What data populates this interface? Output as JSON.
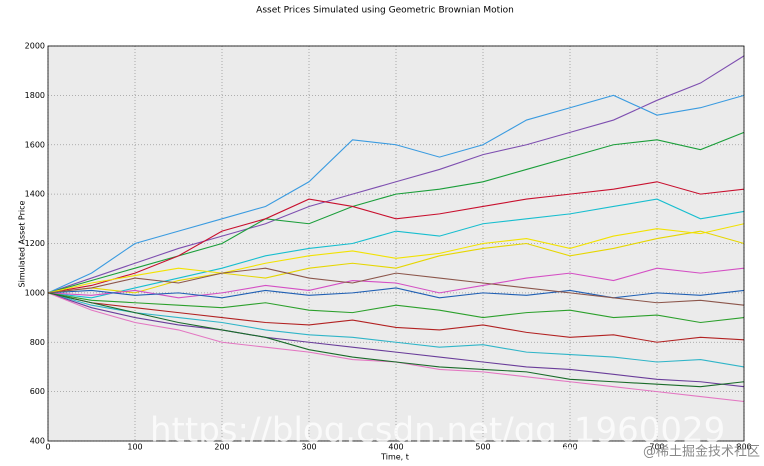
{
  "chart_data": {
    "type": "line",
    "title": "Asset Prices Simulated using Geometric Brownian Motion",
    "xlabel": "Time, t",
    "ylabel": "Simulated Asset Price",
    "x": [
      0,
      50,
      100,
      150,
      200,
      250,
      300,
      350,
      400,
      450,
      500,
      550,
      600,
      650,
      700,
      750,
      800
    ],
    "series": [
      {
        "color": "#7e4fb0",
        "values": [
          1000,
          1060,
          1120,
          1180,
          1230,
          1280,
          1350,
          1400,
          1450,
          1500,
          1560,
          1600,
          1650,
          1700,
          1780,
          1850,
          1960
        ]
      },
      {
        "color": "#3a9be0",
        "values": [
          1000,
          1080,
          1200,
          1250,
          1300,
          1350,
          1450,
          1620,
          1600,
          1550,
          1600,
          1700,
          1750,
          1800,
          1720,
          1750,
          1800
        ]
      },
      {
        "color": "#1b9e3a",
        "values": [
          1000,
          1050,
          1100,
          1150,
          1200,
          1300,
          1280,
          1350,
          1400,
          1420,
          1450,
          1500,
          1550,
          1600,
          1620,
          1580,
          1650
        ]
      },
      {
        "color": "#c8102e",
        "values": [
          1000,
          1030,
          1080,
          1150,
          1250,
          1300,
          1380,
          1350,
          1300,
          1320,
          1350,
          1380,
          1400,
          1420,
          1450,
          1400,
          1420
        ]
      },
      {
        "color": "#17becf",
        "values": [
          1000,
          980,
          1020,
          1060,
          1100,
          1150,
          1180,
          1200,
          1250,
          1230,
          1280,
          1300,
          1320,
          1350,
          1380,
          1300,
          1330
        ]
      },
      {
        "color": "#e6d600",
        "values": [
          1000,
          1020,
          1000,
          1050,
          1080,
          1060,
          1100,
          1120,
          1100,
          1150,
          1180,
          1200,
          1150,
          1180,
          1220,
          1250,
          1200
        ]
      },
      {
        "color": "#d44fc4",
        "values": [
          1000,
          990,
          1010,
          980,
          1000,
          1030,
          1010,
          1050,
          1040,
          1000,
          1030,
          1060,
          1080,
          1050,
          1100,
          1080,
          1100
        ]
      },
      {
        "color": "#1f5fb4",
        "values": [
          1000,
          1010,
          990,
          1000,
          980,
          1010,
          990,
          1000,
          1020,
          980,
          1000,
          990,
          1010,
          980,
          1000,
          990,
          1010
        ]
      },
      {
        "color": "#2ca02c",
        "values": [
          1000,
          970,
          960,
          950,
          940,
          960,
          930,
          920,
          950,
          930,
          900,
          920,
          930,
          900,
          910,
          880,
          900
        ]
      },
      {
        "color": "#b22222",
        "values": [
          1000,
          960,
          940,
          920,
          900,
          880,
          870,
          890,
          860,
          850,
          870,
          840,
          820,
          830,
          800,
          820,
          810
        ]
      },
      {
        "color": "#30b5c8",
        "values": [
          1000,
          950,
          920,
          900,
          880,
          850,
          830,
          820,
          800,
          780,
          790,
          760,
          750,
          740,
          720,
          730,
          700
        ]
      },
      {
        "color": "#6a3d9a",
        "values": [
          1000,
          940,
          900,
          870,
          850,
          820,
          800,
          780,
          760,
          740,
          720,
          700,
          690,
          670,
          650,
          640,
          620
        ]
      },
      {
        "color": "#e377c2",
        "values": [
          1000,
          930,
          880,
          850,
          800,
          780,
          760,
          730,
          720,
          690,
          680,
          660,
          640,
          620,
          600,
          580,
          560
        ]
      },
      {
        "color": "#f2e200",
        "values": [
          1000,
          1040,
          1070,
          1100,
          1080,
          1120,
          1150,
          1170,
          1140,
          1160,
          1200,
          1220,
          1180,
          1230,
          1260,
          1240,
          1280
        ]
      },
      {
        "color": "#1a6b2a",
        "values": [
          1000,
          960,
          920,
          880,
          850,
          820,
          770,
          740,
          720,
          700,
          690,
          680,
          650,
          640,
          630,
          620,
          640
        ]
      },
      {
        "color": "#8c564b",
        "values": [
          1000,
          1020,
          1060,
          1040,
          1080,
          1100,
          1060,
          1040,
          1080,
          1060,
          1040,
          1020,
          1000,
          980,
          960,
          970,
          950
        ]
      }
    ],
    "xlim": [
      0,
      800
    ],
    "ylim": [
      400,
      2000
    ],
    "xticks": [
      0,
      100,
      200,
      300,
      400,
      500,
      600,
      700,
      800
    ],
    "yticks": [
      400,
      600,
      800,
      1000,
      1200,
      1400,
      1600,
      1800,
      2000
    ],
    "grid": true
  },
  "watermarks": [
    "https://blog.csdn.net/qq_1960029",
    "@稀土掘金技术社区"
  ]
}
